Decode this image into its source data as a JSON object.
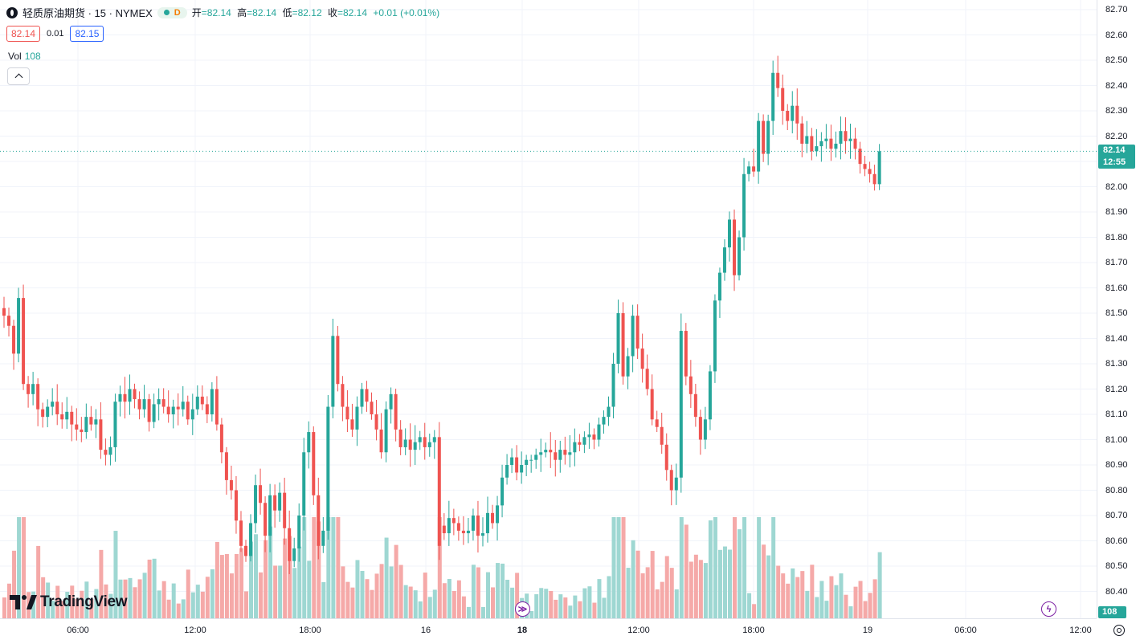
{
  "header": {
    "symbol_title": "轻质原油期货 · 15 · NYMEX",
    "status_letter": "D",
    "ohlc": [
      {
        "label": "开",
        "value": "=82.14"
      },
      {
        "label": "高",
        "value": "=82.14"
      },
      {
        "label": "低",
        "value": "=82.12"
      },
      {
        "label": "收",
        "value": "=82.14"
      }
    ],
    "change": "+0.01 (+0.01%)"
  },
  "trade": {
    "bid": "82.14",
    "spread": "0.01",
    "ask": "82.15"
  },
  "volume_legend": {
    "label": "Vol",
    "value": "108"
  },
  "logo": {
    "text": "TradingView"
  },
  "price_axis": {
    "labels": [
      "82.70",
      "82.60",
      "82.50",
      "82.40",
      "82.30",
      "82.20",
      "82.00",
      "81.90",
      "81.80",
      "81.70",
      "81.60",
      "81.50",
      "81.40",
      "81.30",
      "81.20",
      "81.10",
      "81.00",
      "80.90",
      "80.80",
      "80.70",
      "80.60",
      "80.50",
      "80.40"
    ],
    "current_price": "82.14",
    "countdown": "12:55",
    "volume_tag": "108"
  },
  "time_axis": {
    "labels": [
      {
        "text": "06:00",
        "bold": false
      },
      {
        "text": "12:00",
        "bold": false
      },
      {
        "text": "18:00",
        "bold": false
      },
      {
        "text": "16",
        "bold": false
      },
      {
        "text": "18",
        "bold": true
      },
      {
        "text": "12:00",
        "bold": false
      },
      {
        "text": "18:00",
        "bold": false
      },
      {
        "text": "19",
        "bold": false
      },
      {
        "text": "06:00",
        "bold": false
      },
      {
        "text": "12:00",
        "bold": false
      }
    ]
  },
  "markers": [
    {
      "icon": "fast-forward-icon",
      "glyph": "≫"
    },
    {
      "icon": "lightning-icon",
      "glyph": "ϟ"
    }
  ],
  "colors": {
    "up": "#26a69a",
    "down": "#ef5350",
    "up_volume": "#9ed7d2",
    "down_volume": "#f5a9a8",
    "grid": "#f0f3fa"
  },
  "chart_data": {
    "type": "candlestick",
    "interval": "15",
    "exchange": "NYMEX",
    "y_range": [
      80.3,
      82.75
    ],
    "current_price": 82.14,
    "ohlc_closes": [
      81.49,
      81.45,
      81.34,
      81.56,
      81.22,
      81.18,
      81.22,
      81.12,
      81.09,
      81.13,
      81.15,
      81.1,
      81.08,
      81.11,
      81.06,
      81.04,
      81.03,
      81.09,
      81.06,
      81.08,
      80.96,
      80.94,
      80.97,
      81.15,
      81.18,
      81.15,
      81.2,
      81.16,
      81.12,
      81.16,
      81.07,
      81.14,
      81.16,
      81.13,
      81.1,
      81.13,
      81.12,
      81.15,
      81.08,
      81.12,
      81.17,
      81.14,
      81.1,
      81.2,
      81.06,
      80.95,
      80.84,
      80.8,
      80.68,
      80.58,
      80.54,
      80.67,
      80.82,
      80.75,
      80.62,
      80.78,
      80.72,
      80.79,
      80.65,
      80.52,
      80.57,
      80.7,
      80.95,
      81.03,
      80.78,
      80.58,
      80.64,
      81.13,
      81.41,
      81.22,
      81.13,
      81.08,
      81.04,
      81.13,
      81.2,
      81.15,
      81.1,
      81.04,
      80.95,
      81.12,
      81.18,
      81.04,
      80.97,
      81.0,
      80.96,
      80.99,
      81.01,
      80.97,
      80.99,
      81.01,
      80.58,
      80.63,
      80.69,
      80.67,
      80.64,
      80.63,
      80.64,
      80.7,
      80.62,
      80.63,
      80.71,
      80.67,
      80.74,
      80.85,
      80.9,
      80.93,
      80.87,
      80.9,
      80.92,
      80.92,
      80.94,
      80.95,
      80.96,
      80.95,
      80.92,
      80.96,
      80.94,
      80.95,
      80.99,
      80.98,
      81.01,
      81.02,
      81.0,
      81.06,
      81.09,
      81.13,
      81.3,
      81.5,
      81.25,
      81.33,
      81.49,
      81.36,
      81.28,
      81.2,
      81.08,
      81.05,
      80.98,
      80.88,
      80.8,
      80.85,
      81.43,
      81.25,
      81.18,
      81.09,
      81.0,
      81.08,
      81.27,
      81.55,
      81.66,
      81.76,
      81.87,
      81.65,
      81.8,
      82.05,
      82.08,
      82.06,
      82.26,
      82.13,
      82.26,
      82.45,
      82.39,
      82.3,
      82.26,
      82.32,
      82.25,
      82.17,
      82.2,
      82.14,
      82.16,
      82.18,
      82.19,
      82.15,
      82.17,
      82.22,
      82.18,
      82.19,
      82.15,
      82.09,
      82.07,
      82.05,
      82.01,
      82.14
    ]
  }
}
